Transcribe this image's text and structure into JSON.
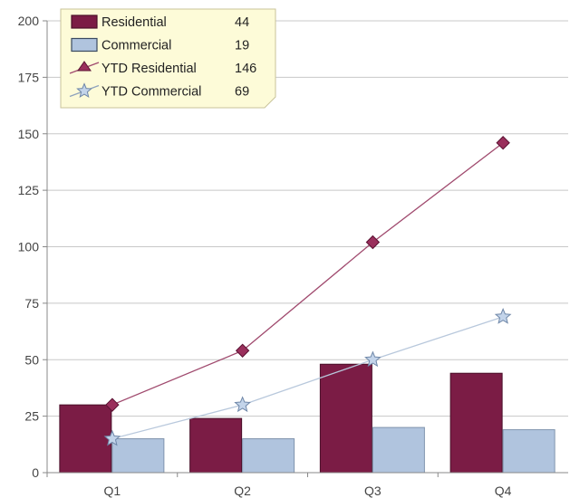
{
  "chart_data": {
    "type": "bar",
    "title": "",
    "xlabel": "",
    "ylabel": "",
    "categories": [
      "Q1",
      "Q2",
      "Q3",
      "Q4"
    ],
    "ylim": [
      0,
      200
    ],
    "yticks": [
      0,
      25,
      50,
      75,
      100,
      125,
      150,
      175,
      200
    ],
    "grid": true,
    "legend_position": "top-left",
    "series": [
      {
        "name": "Residential",
        "type": "bar",
        "values": [
          30,
          24,
          48,
          44
        ],
        "color": "#7b1c45",
        "legend_value": "44"
      },
      {
        "name": "Commercial",
        "type": "bar",
        "values": [
          15,
          15,
          20,
          19
        ],
        "color": "#b0c4de",
        "legend_value": "19"
      },
      {
        "name": "YTD Residential",
        "type": "line",
        "marker": "diamond",
        "values": [
          30,
          54,
          102,
          146
        ],
        "color": "#a04a6e",
        "legend_value": "146"
      },
      {
        "name": "YTD Commercial",
        "type": "line",
        "marker": "star",
        "values": [
          15,
          30,
          50,
          69
        ],
        "color": "#b8c8dc",
        "legend_value": "69"
      }
    ]
  }
}
